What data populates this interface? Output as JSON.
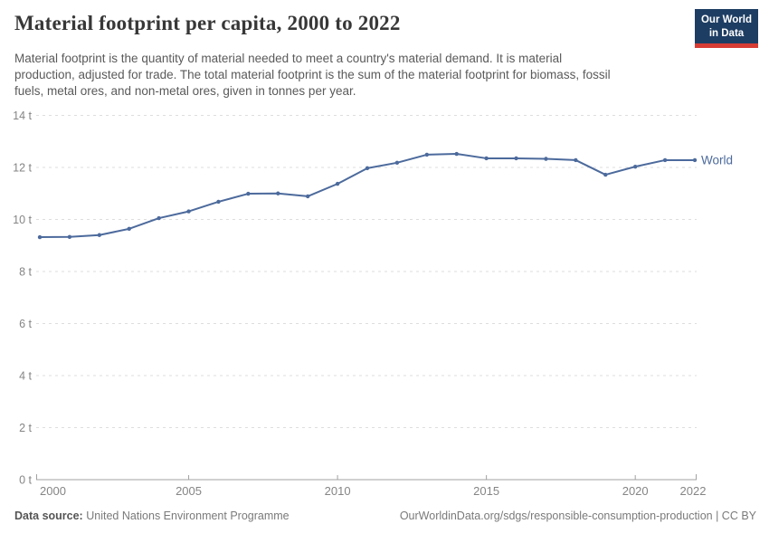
{
  "header": {
    "title": "Material footprint per capita, 2000 to 2022",
    "subtitle_lines": [
      "Material footprint is the quantity of material needed to meet a country's material demand. It is material",
      "production, adjusted for trade. The total material footprint is the sum of the material footprint for biomass, fossil",
      "fuels, metal ores, and non-metal ores, given in tonnes per year."
    ],
    "logo": {
      "line1": "Our World",
      "line2": "in Data",
      "bg_color": "#1d3d63",
      "accent_color": "#d73c34"
    }
  },
  "chart_data": {
    "type": "line",
    "title": "Material footprint per capita, 2000 to 2022",
    "unit": "t",
    "ylabel": "",
    "xlabel": "",
    "ylim": [
      0,
      14
    ],
    "yticks": [
      0,
      2,
      4,
      6,
      8,
      10,
      12,
      14
    ],
    "xticks": [
      2000,
      2005,
      2010,
      2015,
      2020,
      2022
    ],
    "grid": "horizontal-dashed",
    "legend_position": "end-of-line",
    "x": [
      2000,
      2001,
      2002,
      2003,
      2004,
      2005,
      2006,
      2007,
      2008,
      2009,
      2010,
      2011,
      2012,
      2013,
      2014,
      2015,
      2016,
      2017,
      2018,
      2019,
      2020,
      2021,
      2022
    ],
    "series": [
      {
        "name": "World",
        "color": "#4c6a9c",
        "values": [
          9.32,
          9.33,
          9.4,
          9.64,
          10.05,
          10.31,
          10.68,
          10.99,
          11.0,
          10.89,
          11.37,
          11.97,
          12.18,
          12.49,
          12.52,
          12.35,
          12.35,
          12.33,
          12.28,
          11.72,
          12.03,
          12.28,
          12.28
        ]
      }
    ],
    "axis_color": "#a1a1a1",
    "grid_color": "#dedede",
    "tick_label_color": "#858585"
  },
  "footer": {
    "data_source_label": "Data source:",
    "data_source": "United Nations Environment Programme",
    "attribution": "OurWorldinData.org/sdgs/responsible-consumption-production | CC BY"
  }
}
